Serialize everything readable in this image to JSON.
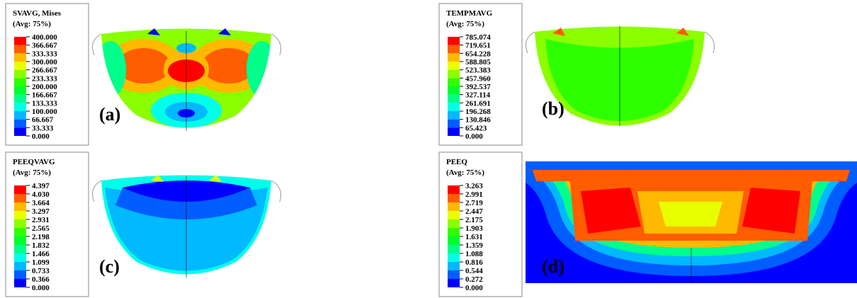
{
  "legend_colors": [
    "#ff0000",
    "#ff5d00",
    "#ffb900",
    "#e8ff00",
    "#8bff00",
    "#2eff00",
    "#00ff2e",
    "#00ff8b",
    "#00ffe8",
    "#00b9ff",
    "#005dff",
    "#0000ff"
  ],
  "panels": [
    {
      "title_lines": [
        "SVAVG, Mises",
        "(Avg: 75%)"
      ],
      "labels": [
        "400.000",
        "366.667",
        "333.333",
        "300.000",
        "266.667",
        "233.333",
        "200.000",
        "166.667",
        "133.333",
        "100.000",
        "66.667",
        "33.333",
        "0.000"
      ],
      "panel_label": "(a)"
    },
    {
      "title_lines": [
        "TEMPMAVG",
        "(Avg: 75%)"
      ],
      "labels": [
        "785.074",
        "719.651",
        "654.228",
        "588.805",
        "523.383",
        "457.960",
        "392.537",
        "327.114",
        "261.691",
        "196.268",
        "130.846",
        "65.423",
        "0.000"
      ],
      "panel_label": "(b)"
    },
    {
      "title_lines": [
        "PEEQVAVG",
        "(Avg: 75%)"
      ],
      "labels": [
        "4.397",
        "4.030",
        "3.664",
        "3.297",
        "2.931",
        "2.565",
        "2.198",
        "1.832",
        "1.466",
        "1.099",
        "0.733",
        "0.366",
        "0.000"
      ],
      "panel_label": "(c)"
    },
    {
      "title_lines": [
        "PEEQ",
        "(Avg: 75%)"
      ],
      "labels": [
        "3.263",
        "2.991",
        "2.719",
        "2.447",
        "2.175",
        "1.903",
        "1.631",
        "1.359",
        "1.088",
        "0.816",
        "0.544",
        "0.272",
        "0.000"
      ],
      "panel_label": "(d)"
    }
  ]
}
